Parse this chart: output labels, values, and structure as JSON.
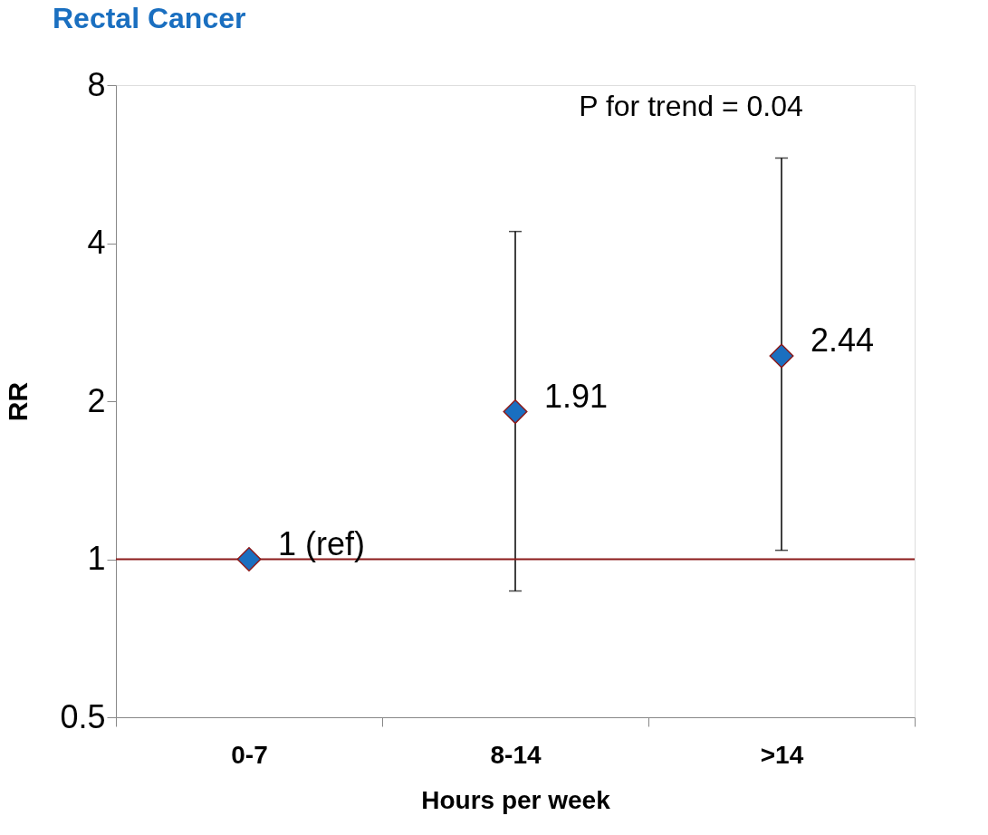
{
  "chart_data": {
    "type": "scatter",
    "title": "Rectal Cancer",
    "xlabel": "Hours per week",
    "ylabel": "RR",
    "categories": [
      "0-7",
      "8-14",
      ">14"
    ],
    "series": [
      {
        "color": "#1a6fc0",
        "values": [
          1,
          1.91,
          2.44
        ],
        "errors": [
          null,
          [
            0.87,
            4.21
          ],
          [
            1.04,
            5.81
          ]
        ],
        "value_labels": [
          "1 (ref)",
          "1.91",
          "2.44"
        ]
      }
    ],
    "log": "y",
    "ylim": [
      0.5,
      8
    ],
    "yticks": [
      0.5,
      1,
      2,
      4,
      8
    ],
    "grid": false,
    "legend": false,
    "marker": "diamond",
    "ref_lines": [
      {
        "axis": "y",
        "value": 1,
        "color": "#8b1a1a"
      }
    ],
    "annotations": [
      "P for trend = 0.04"
    ]
  }
}
